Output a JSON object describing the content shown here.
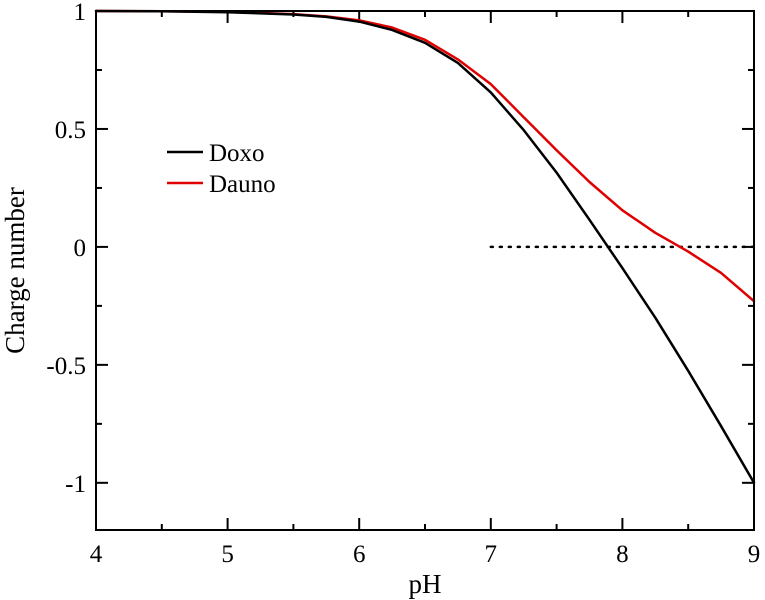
{
  "chart_data": {
    "type": "line",
    "title": "",
    "xlabel": "pH",
    "ylabel": "Charge number",
    "xlim": [
      4,
      9
    ],
    "ylim": [
      -1.2,
      1
    ],
    "xticks": [
      4,
      5,
      6,
      7,
      8,
      9
    ],
    "xtick_labels": [
      "4",
      "5",
      "6",
      "7",
      "8",
      "9"
    ],
    "yticks": [
      1,
      0.5,
      0,
      -0.5,
      -1
    ],
    "ytick_labels": [
      "1",
      "0.5",
      "0",
      "-0.5",
      "-1"
    ],
    "grid": false,
    "legend_position": "upper-left",
    "series": [
      {
        "name": "Doxo",
        "color": "#000000",
        "x": [
          4.0,
          4.5,
          5.0,
          5.5,
          5.75,
          6.0,
          6.25,
          6.5,
          6.75,
          7.0,
          7.25,
          7.5,
          7.75,
          8.0,
          8.25,
          8.5,
          8.75,
          9.0
        ],
        "y": [
          1.0,
          0.999,
          0.995,
          0.985,
          0.975,
          0.955,
          0.92,
          0.865,
          0.78,
          0.655,
          0.495,
          0.315,
          0.115,
          -0.09,
          -0.3,
          -0.525,
          -0.76,
          -1.0
        ]
      },
      {
        "name": "Dauno",
        "color": "#e00000",
        "x": [
          4.0,
          4.5,
          5.0,
          5.5,
          5.75,
          6.0,
          6.25,
          6.5,
          6.75,
          7.0,
          7.25,
          7.5,
          7.75,
          8.0,
          8.25,
          8.5,
          8.75,
          9.0
        ],
        "y": [
          1.0,
          0.999,
          0.996,
          0.987,
          0.977,
          0.96,
          0.93,
          0.878,
          0.795,
          0.69,
          0.55,
          0.41,
          0.275,
          0.155,
          0.06,
          -0.02,
          -0.11,
          -0.23
        ]
      }
    ],
    "reference_line": {
      "style": "dotted",
      "color": "#000000",
      "x": [
        7.0,
        9.0
      ],
      "y": [
        0,
        0
      ]
    }
  }
}
